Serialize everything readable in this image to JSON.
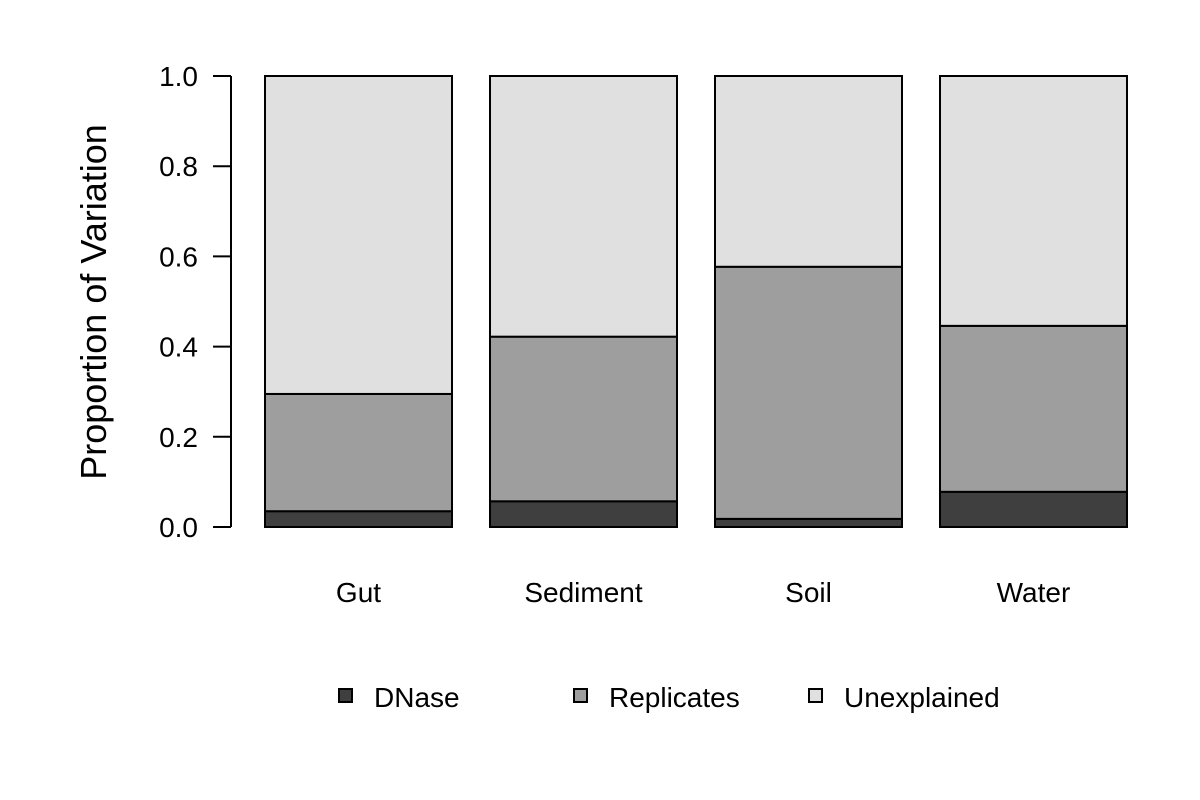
{
  "chart_data": {
    "type": "bar",
    "stacked": true,
    "categories": [
      "Gut",
      "Sediment",
      "Soil",
      "Water"
    ],
    "series": [
      {
        "name": "DNase",
        "color": "#3f3f3f",
        "values": [
          0.035,
          0.057,
          0.018,
          0.078
        ]
      },
      {
        "name": "Replicates",
        "color": "#9e9e9e",
        "values": [
          0.26,
          0.365,
          0.559,
          0.368
        ]
      },
      {
        "name": "Unexplained",
        "color": "#e0e0e0",
        "values": [
          0.705,
          0.578,
          0.423,
          0.554
        ]
      }
    ],
    "title": "",
    "xlabel": "",
    "ylabel": "Proportion of Variation",
    "ylim": [
      0,
      1
    ],
    "yticks": [
      "0.0",
      "0.2",
      "0.4",
      "0.6",
      "0.8",
      "1.0"
    ],
    "grid": false,
    "legend_position": "bottom"
  }
}
